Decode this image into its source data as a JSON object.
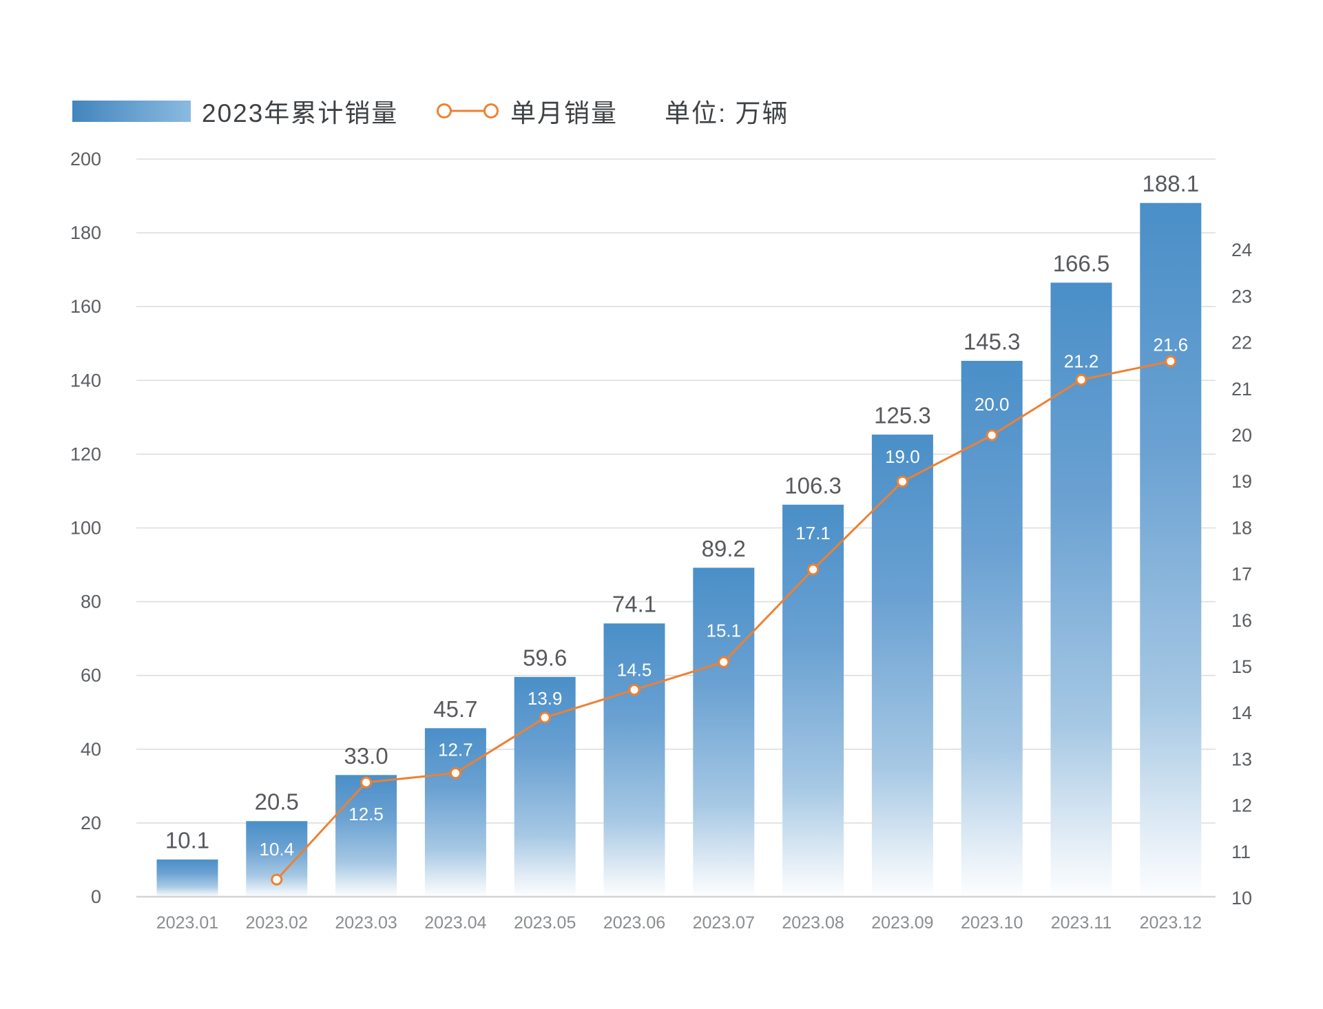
{
  "legend": {
    "bar_series_label": "2023年累计销量",
    "line_series_label": "单月销量",
    "unit_label": "单位: 万辆"
  },
  "colors": {
    "bar_gradient_top": "#4A8FC8",
    "bar_gradient_mid": "#6AA1D2",
    "bar_gradient_low": "#A6C8E4",
    "bar_gradient_bottom": "#FDFEFF",
    "legend_swatch_left": "#4385BD",
    "legend_swatch_right": "#8ABAE0",
    "line": "#ED8133",
    "point_fill": "#FFFFFF",
    "bar_value_label": "#57595D",
    "axis_tick_label": "#5A5D61",
    "x_tick_label": "#8A8D90",
    "line_value_label": "#FFFFFF",
    "legend_text": "#3E4144",
    "gridline": "#DEDEDE",
    "baseline": "#D4D4D4"
  },
  "chart_data": {
    "type": "combo",
    "title": "",
    "unit": "万辆",
    "categories": [
      "2023.01",
      "2023.02",
      "2023.03",
      "2023.04",
      "2023.05",
      "2023.06",
      "2023.07",
      "2023.08",
      "2023.09",
      "2023.10",
      "2023.11",
      "2023.12"
    ],
    "series": [
      {
        "name": "2023年累计销量",
        "type": "bar",
        "axis": "left",
        "values": [
          10.1,
          20.5,
          33.0,
          45.7,
          59.6,
          74.1,
          89.2,
          106.3,
          125.3,
          145.3,
          166.5,
          188.1
        ]
      },
      {
        "name": "单月销量",
        "type": "line",
        "axis": "right",
        "values": [
          null,
          10.4,
          12.5,
          12.7,
          13.9,
          14.5,
          15.1,
          17.1,
          19.0,
          20.0,
          21.2,
          21.6
        ],
        "label_side": [
          null,
          "above",
          "below",
          "above",
          "above",
          "above",
          "above",
          "above",
          "above",
          "above",
          "above",
          "above"
        ]
      }
    ],
    "left_axis": {
      "min": 0,
      "max": 200,
      "step": 20
    },
    "right_axis": {
      "min": 10,
      "max": 24,
      "step": 1
    },
    "layout": {
      "grid": "horizontal",
      "legend_position": "top-left",
      "bar_labels": "above-bar",
      "line_labels": "at-point"
    }
  }
}
